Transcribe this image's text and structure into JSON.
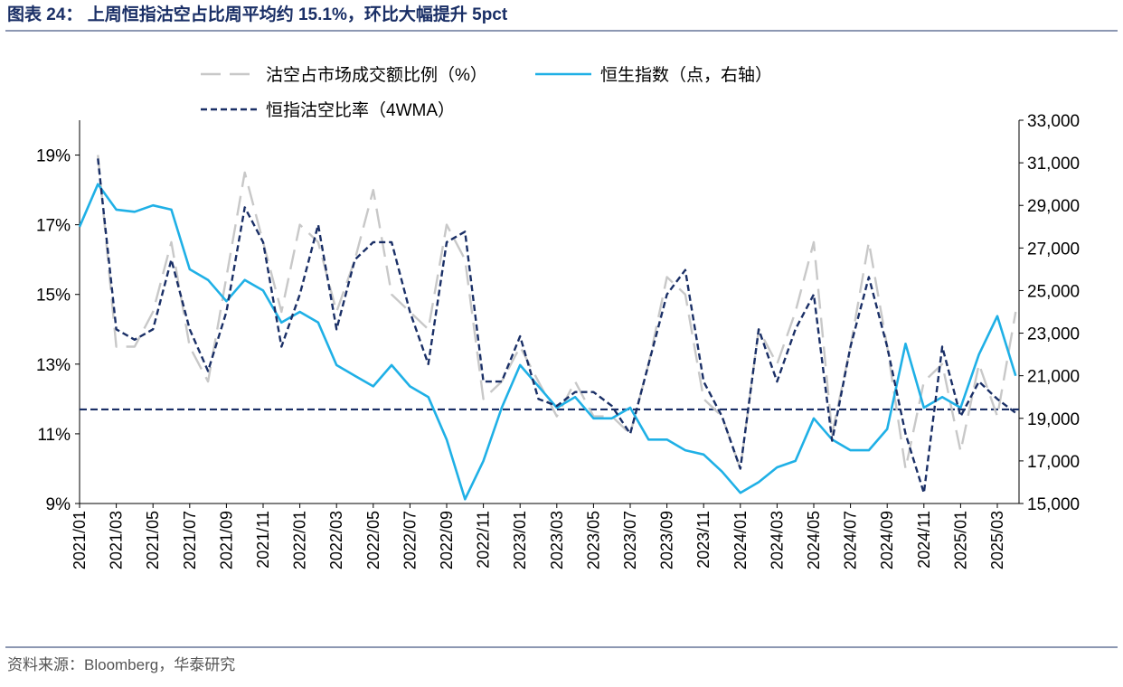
{
  "chart_data": {
    "type": "line",
    "title": "图表 24：  上周恒指沽空占比周平均约 15.1%，环比大幅提升 5pct",
    "source": "资料来源：Bloomberg，华泰研究",
    "categories": [
      "2021/01",
      null,
      "2021/03",
      null,
      "2021/05",
      null,
      "2021/07",
      null,
      "2021/09",
      null,
      "2021/11",
      null,
      "2022/01",
      null,
      "2022/03",
      null,
      "2022/05",
      null,
      "2022/07",
      null,
      "2022/09",
      null,
      "2022/11",
      null,
      "2023/01",
      null,
      "2023/03",
      null,
      "2023/05",
      null,
      "2023/07",
      null,
      "2023/09",
      null,
      "2023/11",
      null,
      "2024/01",
      null,
      "2024/03",
      null,
      "2024/05",
      null,
      "2024/07",
      null,
      "2024/09",
      null,
      "2024/11",
      null,
      "2025/01",
      null,
      "2025/03",
      null
    ],
    "series": [
      {
        "name": "沽空占市场成交额比例（%）",
        "color": "#c8c8c8",
        "dash": "long",
        "axis": "y",
        "values": [
          null,
          19.0,
          13.5,
          13.5,
          14.5,
          16.5,
          13.5,
          12.5,
          15.5,
          18.5,
          16.5,
          14.5,
          17.0,
          16.5,
          14.5,
          16.0,
          18.0,
          15.0,
          14.5,
          14.0,
          17.0,
          16.0,
          12.0,
          12.5,
          13.5,
          12.5,
          11.5,
          12.5,
          11.5,
          11.5,
          11.0,
          13.0,
          15.5,
          15.0,
          12.0,
          11.5,
          10.0,
          14.0,
          13.0,
          14.5,
          16.5,
          11.0,
          13.5,
          16.5,
          13.5,
          10.0,
          12.5,
          13.0,
          10.5,
          13.0,
          11.5,
          14.5
        ]
      },
      {
        "name": "恒生指数（点，右轴）",
        "color": "#1fb0e6",
        "dash": "solid",
        "axis": "y2",
        "values": [
          28000,
          30000,
          28800,
          28700,
          29000,
          28800,
          26000,
          25500,
          24500,
          25500,
          25000,
          23500,
          24000,
          23500,
          21500,
          21000,
          20500,
          21500,
          20500,
          20000,
          18000,
          15200,
          17000,
          19500,
          21500,
          20500,
          19500,
          20000,
          19000,
          19000,
          19500,
          18000,
          18000,
          17500,
          17300,
          16500,
          15500,
          16000,
          16700,
          17000,
          19000,
          18000,
          17500,
          17500,
          18500,
          22500,
          19500,
          20000,
          19500,
          22000,
          23800,
          21000
        ]
      },
      {
        "name": "恒指沽空比率（4WMA）",
        "color": "#1a2f66",
        "dash": "short",
        "axis": "y",
        "values": [
          null,
          18.9,
          14.0,
          13.7,
          14.0,
          16.0,
          14.0,
          12.8,
          14.5,
          17.5,
          16.5,
          13.5,
          15.0,
          17.0,
          14.0,
          16.0,
          16.5,
          16.5,
          14.5,
          13.0,
          16.5,
          16.8,
          12.5,
          12.5,
          13.8,
          12.0,
          11.8,
          12.2,
          12.2,
          11.8,
          11.0,
          13.0,
          15.0,
          15.7,
          12.5,
          11.5,
          10.0,
          14.0,
          12.5,
          14.0,
          15.0,
          10.8,
          13.5,
          15.5,
          13.5,
          11.0,
          9.3,
          13.5,
          11.5,
          12.5,
          12.0,
          11.6
        ]
      }
    ],
    "hline": 11.7,
    "ylim": [
      9,
      20
    ],
    "yticks": [
      {
        "value": 9,
        "label": "9%"
      },
      {
        "value": 11,
        "label": "11%"
      },
      {
        "value": 13,
        "label": "13%"
      },
      {
        "value": 15,
        "label": "15%"
      },
      {
        "value": 17,
        "label": "17%"
      },
      {
        "value": 19,
        "label": "19%"
      }
    ],
    "y2lim": [
      15000,
      33000
    ],
    "y2ticks": [
      {
        "value": 15000,
        "label": "15,000"
      },
      {
        "value": 17000,
        "label": "17,000"
      },
      {
        "value": 19000,
        "label": "19,000"
      },
      {
        "value": 21000,
        "label": "21,000"
      },
      {
        "value": 23000,
        "label": "23,000"
      },
      {
        "value": 25000,
        "label": "25,000"
      },
      {
        "value": 27000,
        "label": "27,000"
      },
      {
        "value": 29000,
        "label": "29,000"
      },
      {
        "value": 31000,
        "label": "31,000"
      },
      {
        "value": 33000,
        "label": "33,000"
      }
    ],
    "grid": false
  }
}
